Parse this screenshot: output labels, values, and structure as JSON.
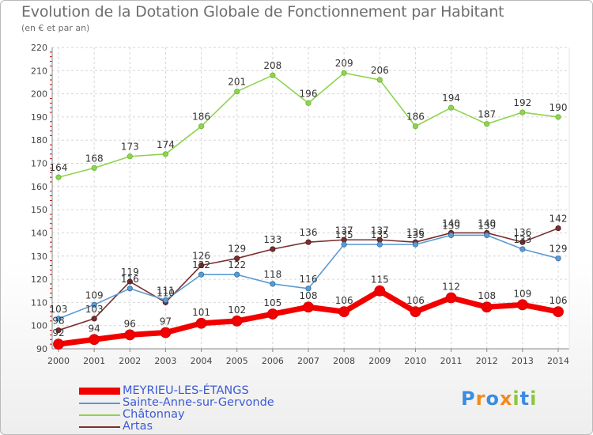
{
  "header": {
    "title": "Evolution de la Dotation Globale de Fonctionnement par Habitant",
    "subtitle": "(en € et par an)"
  },
  "logo": {
    "text": "Proxiti",
    "letters": [
      "P",
      "r",
      "o",
      "x",
      "i",
      "t",
      "i"
    ],
    "colors": [
      "#3a8de0",
      "#f28a1e",
      "#3a8de0",
      "#f28a1e",
      "#8cc63f",
      "#3a8de0",
      "#8cc63f"
    ]
  },
  "chart_data": {
    "type": "line",
    "x": [
      "2000",
      "2001",
      "2002",
      "2003",
      "2004",
      "2005",
      "2006",
      "2007",
      "2008",
      "2009",
      "2010",
      "2011",
      "2012",
      "2013",
      "2014"
    ],
    "ylim": [
      90,
      220
    ],
    "yticks": [
      90,
      100,
      110,
      120,
      130,
      140,
      150,
      160,
      170,
      180,
      190,
      200,
      210,
      220
    ],
    "grid": true,
    "legend_position": "bottom-left",
    "series": [
      {
        "name": "Châtonnay",
        "color": "#8ed44e",
        "values": [
          164,
          168,
          173,
          174,
          186,
          201,
          208,
          196,
          209,
          206,
          186,
          194,
          187,
          192,
          190
        ]
      },
      {
        "name": "Artas",
        "color": "#7a2f2f",
        "values": [
          98,
          103,
          119,
          110,
          126,
          129,
          133,
          136,
          137,
          137,
          136,
          140,
          140,
          136,
          142
        ]
      },
      {
        "name": "Sainte-Anne-sur-Gervonde",
        "color": "#5b9bd0",
        "values": [
          103,
          109,
          116,
          111,
          122,
          122,
          118,
          116,
          135,
          135,
          135,
          139,
          139,
          133,
          129
        ]
      },
      {
        "name": "MEYRIEU-LES-ÉTANGS",
        "color": "#f20000",
        "values": [
          92,
          94,
          96,
          97,
          101,
          102,
          105,
          108,
          106,
          115,
          106,
          112,
          108,
          109,
          106
        ]
      }
    ],
    "legend_order": [
      "MEYRIEU-LES-ÉTANGS",
      "Sainte-Anne-sur-Gervonde",
      "Châtonnay",
      "Artas"
    ]
  }
}
